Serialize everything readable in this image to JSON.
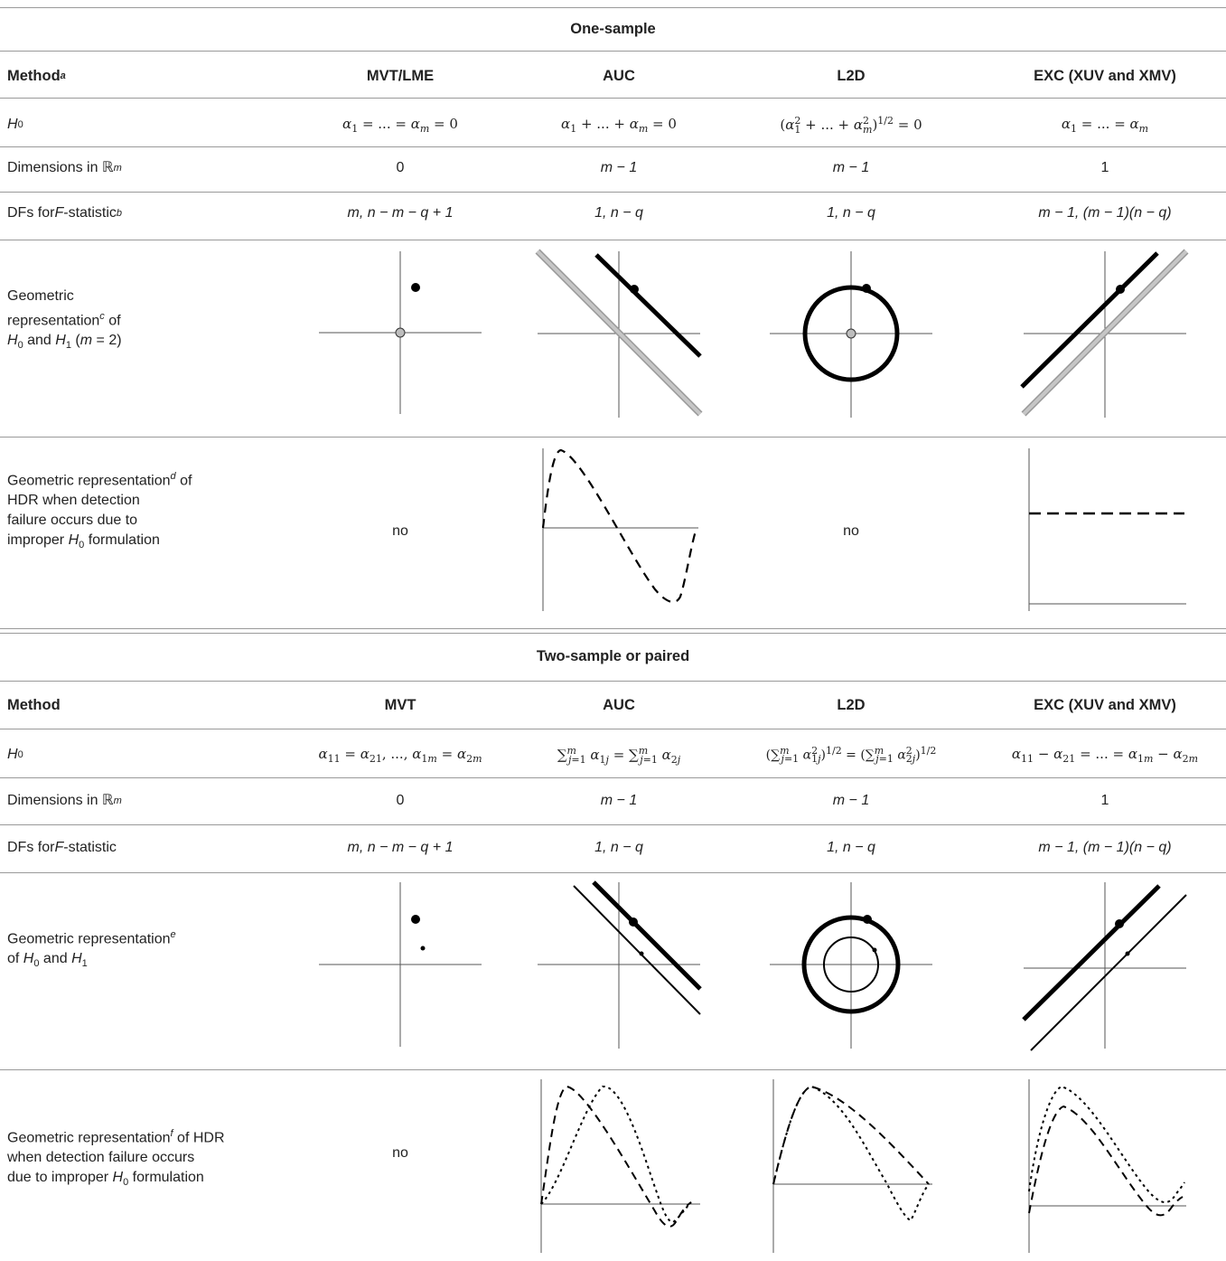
{
  "one_sample": {
    "section_title": "One-sample",
    "header": {
      "method_label": "Method",
      "method_sup": "a",
      "columns": [
        "MVT/LME",
        "AUC",
        "L2D",
        "EXC (XUV and XMV)"
      ]
    },
    "rows": {
      "h0": {
        "label": "H",
        "label_sub": "0",
        "cells": [
          "α1 = ... = αm = 0",
          "α1 + ... + αm = 0",
          "(α1² + ... + αm²)^1/2 = 0",
          "α1 = ... = αm"
        ]
      },
      "dims": {
        "label": "Dimensions in ℝ",
        "label_sup": "m",
        "cells": [
          "0",
          "m − 1",
          "m − 1",
          "1"
        ]
      },
      "dfs": {
        "label_pre": "DFs for ",
        "label_f": "F",
        "label_post": "-statistic",
        "label_sup": "b",
        "cells": [
          "m, n − m − q + 1",
          "1, n − q",
          "1, n − q",
          "m − 1, (m − 1)(n − q)"
        ]
      },
      "geo": {
        "label_1": "Geometric",
        "label_2": "representation",
        "label_sup": "c",
        "label_3": " of",
        "label_4": "H0 and H1 (m = 2)"
      },
      "hdr": {
        "label_1": "Geometric representation",
        "label_sup": "d",
        "label_2": " of",
        "label_3": "HDR when detection",
        "label_4": "failure occurs due to",
        "label_5": "improper H0 formulation",
        "no_1": "no",
        "no_2": "no"
      }
    }
  },
  "two_sample": {
    "section_title": "Two-sample or paired",
    "header": {
      "method_label": "Method",
      "columns": [
        "MVT",
        "AUC",
        "L2D",
        "EXC (XUV and XMV)"
      ]
    },
    "rows": {
      "h0": {
        "label": "H",
        "label_sub": "0",
        "cells": [
          "α11 = α21, ..., α1m = α2m",
          "Σα1j = Σα2j",
          "(Σα1j²)^1/2 = (Σα2j²)^1/2",
          "α11 − α21 = ... = α1m − α2m"
        ]
      },
      "dims": {
        "label": "Dimensions in ℝ",
        "label_sup": "m",
        "cells": [
          "0",
          "m − 1",
          "m − 1",
          "1"
        ]
      },
      "dfs": {
        "label_pre": "DFs for ",
        "label_f": "F",
        "label_post": "-statistic",
        "cells": [
          "m, n − m − q + 1",
          "1, n − q",
          "1, n − q",
          "m − 1, (m − 1)(n − q)"
        ]
      },
      "geo": {
        "label_1": "Geometric representation",
        "label_sup": "e",
        "label_2": "of H0 and H1"
      },
      "hdr": {
        "label_1": "Geometric representation",
        "label_sup": "f",
        "label_2": " of HDR",
        "label_3": "when detection failure occurs",
        "label_4": "due to improper H0 formulation",
        "no_1": "no"
      }
    }
  },
  "colors": {
    "line": "#9a9a9a",
    "ink": "#000000",
    "gray_fill": "#bdbdbd",
    "axis": "#555555"
  }
}
